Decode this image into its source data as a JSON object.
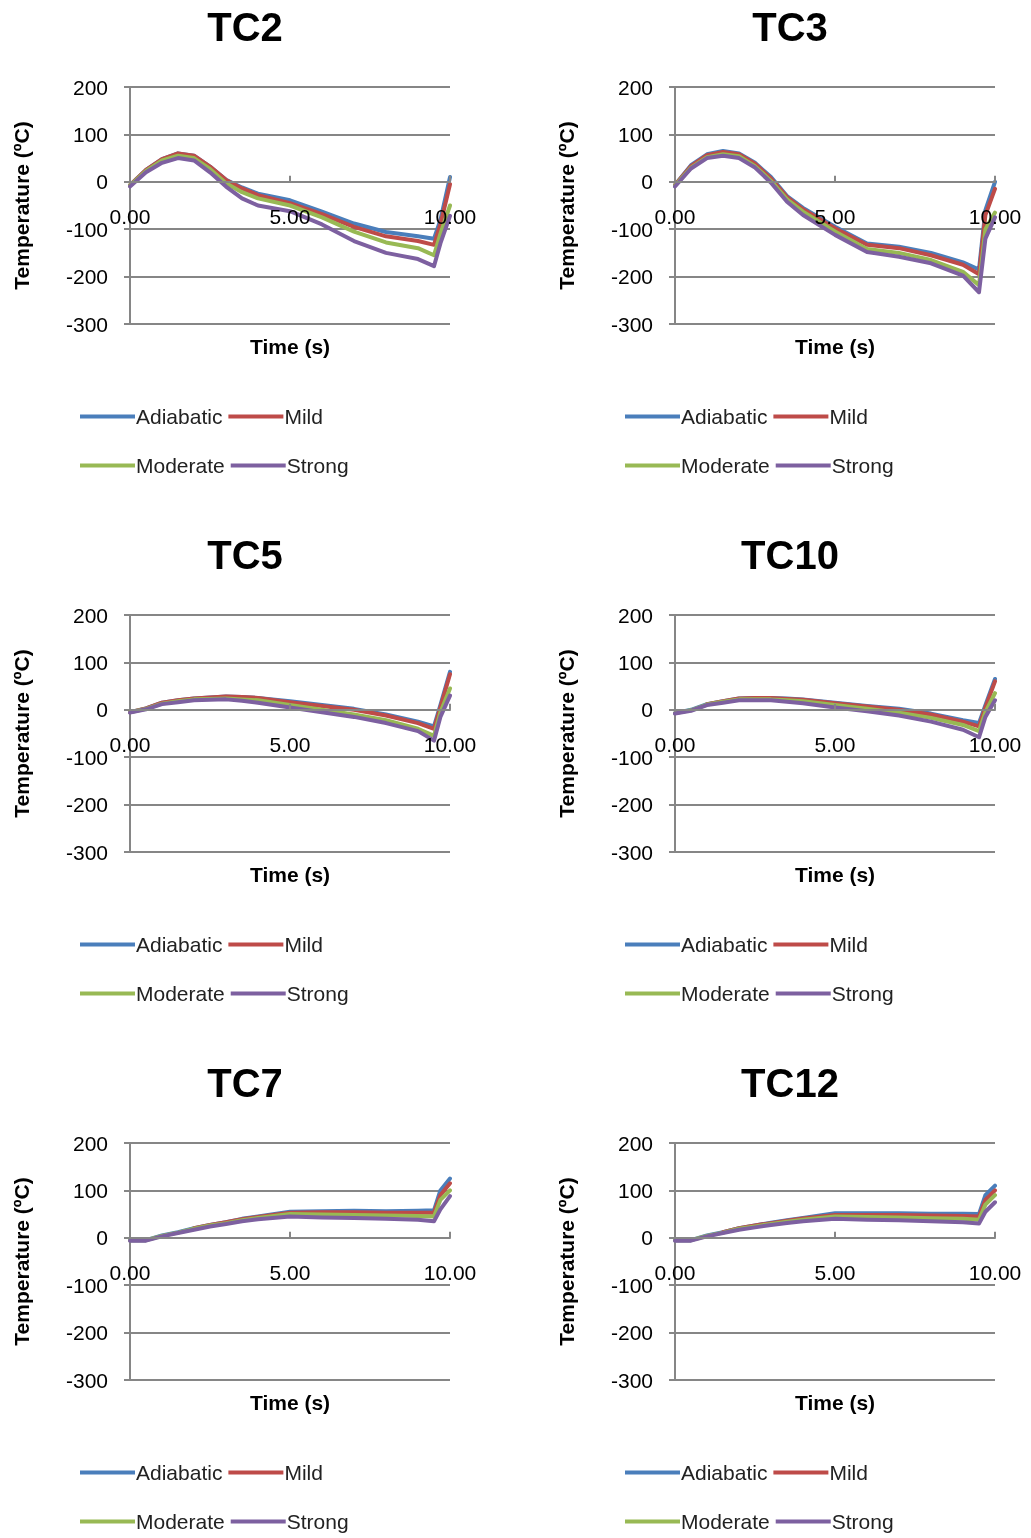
{
  "chart_data": [
    {
      "type": "line",
      "title": "TC2",
      "xlabel": "Time (s)",
      "ylabel": "Temperature (ºC)",
      "x": [
        0,
        0.5,
        1,
        1.5,
        2,
        2.5,
        3,
        3.5,
        4,
        5,
        6,
        7,
        8,
        9,
        9.5,
        9.7,
        10
      ],
      "xlim": [
        0,
        10
      ],
      "xticks": [
        {
          "value": 0,
          "label": "0.00"
        },
        {
          "value": 5,
          "label": "5.00"
        },
        {
          "value": 10,
          "label": "10.00"
        }
      ],
      "ylim": [
        -300,
        200
      ],
      "yticks": [
        -300,
        -200,
        -100,
        0,
        100,
        200
      ],
      "grid": "y",
      "legend": "bottom",
      "marker": "none",
      "series": [
        {
          "name": "Adiabatic",
          "color": "#4a7ebb",
          "values": [
            -7,
            25,
            48,
            60,
            55,
            32,
            4,
            -12,
            -25,
            -39,
            -63,
            -88,
            -106,
            -115,
            -120,
            -81,
            10
          ]
        },
        {
          "name": "Mild",
          "color": "#be4b48",
          "values": [
            -7,
            25,
            48,
            60,
            55,
            32,
            4,
            -14,
            -28,
            -45,
            -68,
            -95,
            -115,
            -125,
            -133,
            -90,
            -5
          ]
        },
        {
          "name": "Moderate",
          "color": "#98b954",
          "values": [
            -8,
            23,
            45,
            55,
            50,
            27,
            -3,
            -22,
            -35,
            -50,
            -75,
            -105,
            -128,
            -140,
            -155,
            -110,
            -50
          ]
        },
        {
          "name": "Strong",
          "color": "#7d60a0",
          "values": [
            -10,
            20,
            40,
            50,
            45,
            20,
            -10,
            -35,
            -50,
            -62,
            -90,
            -125,
            -150,
            -163,
            -178,
            -130,
            -72
          ]
        }
      ]
    },
    {
      "type": "line",
      "title": "TC3",
      "xlabel": "Time (s)",
      "ylabel": "Temperature (ºC)",
      "x": [
        0,
        0.5,
        1,
        1.5,
        2,
        2.5,
        3,
        3.5,
        4,
        5,
        6,
        7,
        8,
        9,
        9.5,
        9.7,
        10
      ],
      "xlim": [
        0,
        10
      ],
      "xticks": [
        {
          "value": 0,
          "label": "0.00"
        },
        {
          "value": 5,
          "label": "5.00"
        },
        {
          "value": 10,
          "label": "10.00"
        }
      ],
      "ylim": [
        -300,
        200
      ],
      "yticks": [
        -300,
        -200,
        -100,
        0,
        100,
        200
      ],
      "grid": "y",
      "legend": "bottom",
      "marker": "none",
      "series": [
        {
          "name": "Adiabatic",
          "color": "#4a7ebb",
          "values": [
            -7,
            35,
            58,
            65,
            60,
            40,
            10,
            -30,
            -55,
            -95,
            -130,
            -137,
            -150,
            -170,
            -185,
            -60,
            0
          ]
        },
        {
          "name": "Mild",
          "color": "#be4b48",
          "values": [
            -7,
            33,
            56,
            63,
            58,
            38,
            7,
            -32,
            -58,
            -98,
            -133,
            -140,
            -155,
            -175,
            -195,
            -70,
            -15
          ]
        },
        {
          "name": "Moderate",
          "color": "#98b954",
          "values": [
            -8,
            30,
            52,
            58,
            54,
            33,
            2,
            -37,
            -63,
            -105,
            -142,
            -150,
            -165,
            -190,
            -218,
            -100,
            -65
          ]
        },
        {
          "name": "Strong",
          "color": "#7d60a0",
          "values": [
            -10,
            28,
            50,
            55,
            50,
            30,
            -2,
            -42,
            -70,
            -112,
            -148,
            -158,
            -172,
            -198,
            -233,
            -120,
            -75
          ]
        }
      ]
    },
    {
      "type": "line",
      "title": "TC5",
      "xlabel": "Time (s)",
      "ylabel": "Temperature (ºC)",
      "x": [
        0,
        0.5,
        1,
        1.5,
        2,
        2.5,
        3,
        3.5,
        4,
        5,
        6,
        7,
        8,
        9,
        9.5,
        9.7,
        10
      ],
      "xlim": [
        0,
        10
      ],
      "xticks": [
        {
          "value": 0,
          "label": "0.00"
        },
        {
          "value": 5,
          "label": "5.00"
        },
        {
          "value": 10,
          "label": "10.00"
        }
      ],
      "ylim": [
        -300,
        200
      ],
      "yticks": [
        -300,
        -200,
        -100,
        0,
        100,
        200
      ],
      "grid": "y",
      "legend": "bottom",
      "marker": "none",
      "series": [
        {
          "name": "Adiabatic",
          "color": "#4a7ebb",
          "values": [
            -5,
            3,
            15,
            20,
            24,
            26,
            28,
            27,
            25,
            18,
            10,
            2,
            -10,
            -25,
            -35,
            10,
            80
          ]
        },
        {
          "name": "Mild",
          "color": "#be4b48",
          "values": [
            -5,
            3,
            15,
            20,
            24,
            26,
            28,
            27,
            25,
            16,
            8,
            0,
            -12,
            -28,
            -40,
            5,
            75
          ]
        },
        {
          "name": "Moderate",
          "color": "#98b954",
          "values": [
            -5,
            2,
            13,
            18,
            22,
            23,
            24,
            22,
            20,
            10,
            0,
            -10,
            -22,
            -40,
            -55,
            -5,
            45
          ]
        },
        {
          "name": "Strong",
          "color": "#7d60a0",
          "values": [
            -6,
            1,
            12,
            16,
            20,
            21,
            22,
            19,
            15,
            5,
            -5,
            -15,
            -28,
            -45,
            -65,
            -15,
            30
          ]
        }
      ]
    },
    {
      "type": "line",
      "title": "TC10",
      "xlabel": "Time (s)",
      "ylabel": "Temperature (ºC)",
      "x": [
        0,
        0.5,
        1,
        1.5,
        2,
        2.5,
        3,
        3.5,
        4,
        5,
        6,
        7,
        8,
        9,
        9.5,
        9.7,
        10
      ],
      "xlim": [
        0,
        10
      ],
      "xticks": [
        {
          "value": 0,
          "label": "0.00"
        },
        {
          "value": 5,
          "label": "5.00"
        },
        {
          "value": 10,
          "label": "10.00"
        }
      ],
      "ylim": [
        -300,
        200
      ],
      "yticks": [
        -300,
        -200,
        -100,
        0,
        100,
        200
      ],
      "grid": "y",
      "legend": "bottom",
      "marker": "none",
      "series": [
        {
          "name": "Adiabatic",
          "color": "#4a7ebb",
          "values": [
            -7,
            0,
            12,
            18,
            24,
            25,
            25,
            24,
            22,
            15,
            8,
            2,
            -8,
            -22,
            -28,
            10,
            65
          ]
        },
        {
          "name": "Mild",
          "color": "#be4b48",
          "values": [
            null,
            null,
            12,
            18,
            24,
            25,
            25,
            23,
            21,
            14,
            7,
            0,
            -10,
            -25,
            -35,
            5,
            60
          ]
        },
        {
          "name": "Moderate",
          "color": "#98b954",
          "values": [
            -7,
            -1,
            11,
            17,
            22,
            22,
            22,
            20,
            18,
            10,
            2,
            -6,
            -17,
            -32,
            -45,
            -5,
            35
          ]
        },
        {
          "name": "Strong",
          "color": "#7d60a0",
          "values": [
            -8,
            -2,
            10,
            15,
            20,
            20,
            20,
            17,
            14,
            5,
            -3,
            -12,
            -25,
            -42,
            -58,
            -15,
            20
          ]
        }
      ]
    },
    {
      "type": "line",
      "title": "TC7",
      "xlabel": "Time (s)",
      "ylabel": "Temperature (ºC)",
      "x": [
        0,
        0.5,
        1,
        1.5,
        2,
        2.5,
        3,
        3.5,
        4,
        5,
        6,
        7,
        8,
        9,
        9.5,
        9.7,
        10
      ],
      "xlim": [
        0,
        10
      ],
      "xticks": [
        {
          "value": 0,
          "label": "0.00"
        },
        {
          "value": 5,
          "label": "5.00"
        },
        {
          "value": 10,
          "label": "10.00"
        }
      ],
      "ylim": [
        -300,
        200
      ],
      "yticks": [
        -300,
        -200,
        -100,
        0,
        100,
        200
      ],
      "grid": "y",
      "legend": "bottom",
      "marker": "none",
      "series": [
        {
          "name": "Adiabatic",
          "color": "#4a7ebb",
          "values": [
            -5,
            -5,
            5,
            12,
            20,
            27,
            33,
            40,
            45,
            55,
            56,
            57,
            56,
            57,
            58,
            100,
            125
          ]
        },
        {
          "name": "Mild",
          "color": "#be4b48",
          "values": [
            null,
            null,
            null,
            null,
            20,
            27,
            33,
            39,
            44,
            53,
            54,
            54,
            53,
            53,
            53,
            90,
            115
          ]
        },
        {
          "name": "Moderate",
          "color": "#98b954",
          "values": [
            -5,
            -5,
            4,
            11,
            19,
            26,
            31,
            37,
            42,
            50,
            49,
            48,
            47,
            46,
            45,
            80,
            100
          ]
        },
        {
          "name": "Strong",
          "color": "#7d60a0",
          "values": [
            -6,
            -6,
            3,
            10,
            17,
            24,
            29,
            35,
            39,
            45,
            43,
            42,
            40,
            38,
            35,
            60,
            88
          ]
        }
      ]
    },
    {
      "type": "line",
      "title": "TC12",
      "xlabel": "Time (s)",
      "ylabel": "Temperature (ºC)",
      "x": [
        0,
        0.5,
        1,
        1.5,
        2,
        2.5,
        3,
        3.5,
        4,
        5,
        6,
        7,
        8,
        9,
        9.5,
        9.7,
        10
      ],
      "xlim": [
        0,
        10
      ],
      "xticks": [
        {
          "value": 0,
          "label": "0.00"
        },
        {
          "value": 5,
          "label": "5.00"
        },
        {
          "value": 10,
          "label": "10.00"
        }
      ],
      "ylim": [
        -300,
        200
      ],
      "yticks": [
        -300,
        -200,
        -100,
        0,
        100,
        200
      ],
      "grid": "y",
      "legend": "bottom",
      "marker": "none",
      "series": [
        {
          "name": "Adiabatic",
          "color": "#4a7ebb",
          "values": [
            -5,
            -5,
            5,
            12,
            20,
            26,
            32,
            37,
            42,
            52,
            52,
            52,
            51,
            51,
            50,
            90,
            110
          ]
        },
        {
          "name": "Mild",
          "color": "#be4b48",
          "values": [
            null,
            null,
            null,
            12,
            20,
            26,
            31,
            36,
            41,
            48,
            48,
            48,
            47,
            46,
            45,
            80,
            100
          ]
        },
        {
          "name": "Moderate",
          "color": "#98b954",
          "values": [
            -5,
            -5,
            4,
            11,
            19,
            24,
            29,
            34,
            38,
            45,
            44,
            43,
            41,
            40,
            38,
            70,
            90
          ]
        },
        {
          "name": "Strong",
          "color": "#7d60a0",
          "values": [
            -6,
            -6,
            3,
            10,
            17,
            22,
            27,
            31,
            35,
            40,
            38,
            37,
            35,
            33,
            30,
            55,
            75
          ]
        }
      ]
    }
  ]
}
